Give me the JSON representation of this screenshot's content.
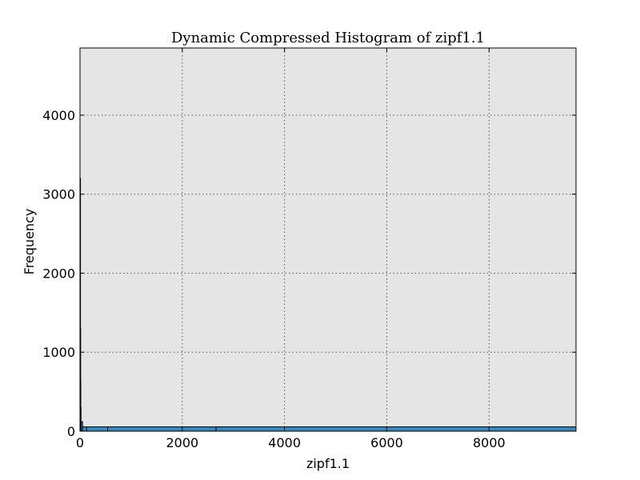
{
  "chart_data": {
    "type": "histogram",
    "title": "Dynamic Compressed Histogram of zipf1.1",
    "xlabel": "zipf1.1",
    "ylabel": "Frequency",
    "xlim": [
      0,
      9700
    ],
    "ylim": [
      0,
      4850
    ],
    "xticks": [
      "0",
      "2000",
      "4000",
      "6000",
      "8000"
    ],
    "xtick_values": [
      0,
      2000,
      4000,
      6000,
      8000
    ],
    "yticks": [
      "0",
      "1000",
      "2000",
      "3000",
      "4000"
    ],
    "ytick_values": [
      0,
      1000,
      2000,
      3000,
      4000
    ],
    "grid": true,
    "bins": [
      {
        "x0": 0,
        "x1": 3,
        "value": 3200
      },
      {
        "x0": 3,
        "x1": 6,
        "value": 1300
      },
      {
        "x0": 6,
        "x1": 10,
        "value": 650
      },
      {
        "x0": 10,
        "x1": 20,
        "value": 300
      },
      {
        "x0": 20,
        "x1": 50,
        "value": 120
      },
      {
        "x0": 50,
        "x1": 130,
        "value": 55
      },
      {
        "x0": 130,
        "x1": 540,
        "value": 55
      },
      {
        "x0": 540,
        "x1": 2660,
        "value": 55
      },
      {
        "x0": 2660,
        "x1": 9700,
        "value": 55
      }
    ],
    "colors": {
      "bar": "#348abd",
      "plot_bg": "#e5e5e5",
      "edge": "#000000"
    }
  }
}
